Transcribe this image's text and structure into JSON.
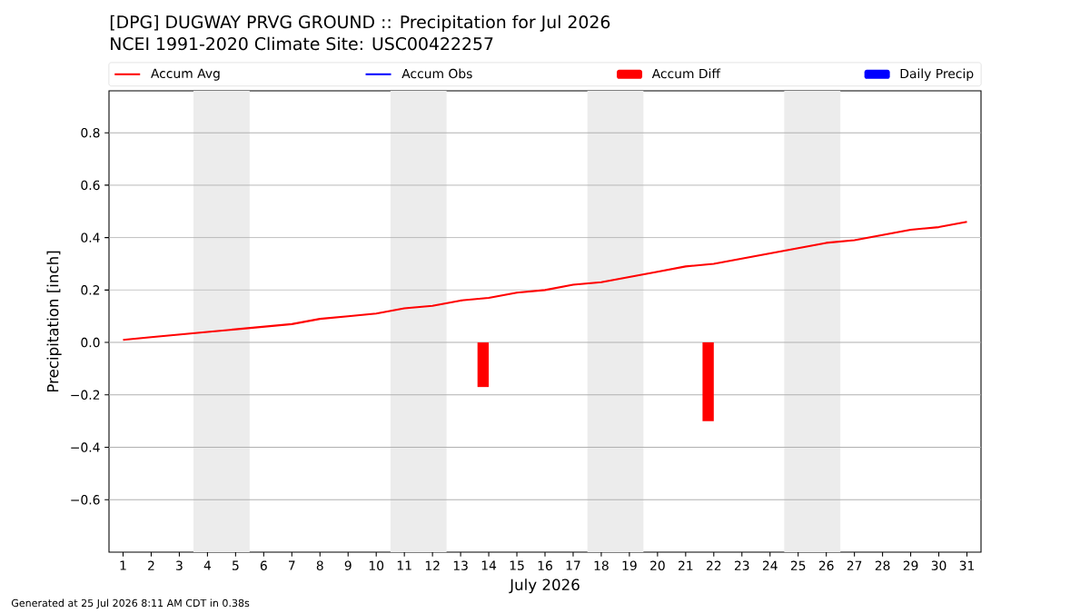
{
  "chart_data": {
    "type": "line",
    "title": "[DPG] DUGWAY PRVG GROUND :: Precipitation for Jul 2026",
    "subtitle": "NCEI 1991-2020 Climate Site: USC00422257",
    "xlabel": "July 2026",
    "ylabel": "Precipitation [inch]",
    "x": [
      1,
      2,
      3,
      4,
      5,
      6,
      7,
      8,
      9,
      10,
      11,
      12,
      13,
      14,
      15,
      16,
      17,
      18,
      19,
      20,
      21,
      22,
      23,
      24,
      25,
      26,
      27,
      28,
      29,
      30,
      31
    ],
    "series": [
      {
        "name": "Accum Avg",
        "color": "#ff0000",
        "values": [
          0.01,
          0.02,
          0.03,
          0.04,
          0.05,
          0.06,
          0.07,
          0.09,
          0.1,
          0.11,
          0.13,
          0.14,
          0.16,
          0.17,
          0.19,
          0.2,
          0.22,
          0.23,
          0.25,
          0.27,
          0.29,
          0.3,
          0.32,
          0.34,
          0.36,
          0.38,
          0.39,
          0.41,
          0.43,
          0.44,
          0.46
        ]
      },
      {
        "name": "Accum Obs",
        "color": "#0000ff",
        "values": [
          null,
          null,
          null,
          null,
          null,
          null,
          null,
          null,
          null,
          null,
          null,
          null,
          null,
          null,
          null,
          null,
          null,
          null,
          null,
          null,
          null,
          null,
          null,
          null,
          null,
          null,
          null,
          null,
          null,
          null,
          null
        ]
      },
      {
        "name": "Accum Diff",
        "type": "bar",
        "color": "#ff0000",
        "values": [
          null,
          null,
          null,
          null,
          null,
          null,
          null,
          null,
          null,
          null,
          null,
          null,
          null,
          -0.17,
          null,
          null,
          null,
          null,
          null,
          null,
          null,
          -0.3,
          null,
          null,
          null,
          null,
          null,
          null,
          null,
          null,
          null
        ]
      },
      {
        "name": "Daily Precip",
        "type": "bar",
        "color": "#0000ff",
        "values": [
          null,
          null,
          null,
          null,
          null,
          null,
          null,
          null,
          null,
          null,
          null,
          null,
          null,
          null,
          null,
          null,
          null,
          null,
          null,
          null,
          null,
          null,
          null,
          null,
          null,
          null,
          null,
          null,
          null,
          null,
          null
        ]
      }
    ],
    "xlim": [
      0.5,
      31.5
    ],
    "ylim": [
      -0.8,
      0.96
    ],
    "xticks": [
      1,
      2,
      3,
      4,
      5,
      6,
      7,
      8,
      9,
      10,
      11,
      12,
      13,
      14,
      15,
      16,
      17,
      18,
      19,
      20,
      21,
      22,
      23,
      24,
      25,
      26,
      27,
      28,
      29,
      30,
      31
    ],
    "yticks": [
      {
        "value": -0.6,
        "label": "−0.6"
      },
      {
        "value": -0.4,
        "label": "−0.4"
      },
      {
        "value": -0.2,
        "label": "−0.2"
      },
      {
        "value": 0,
        "label": "0.0"
      },
      0.2,
      0.4,
      0.6,
      0.8
    ],
    "bands": [
      {
        "axis": "x",
        "from": 3.5,
        "to": 5.5,
        "color": "#ececec"
      },
      {
        "axis": "x",
        "from": 10.5,
        "to": 12.5,
        "color": "#ececec"
      },
      {
        "axis": "x",
        "from": 17.5,
        "to": 19.5,
        "color": "#ececec"
      },
      {
        "axis": "x",
        "from": 24.5,
        "to": 26.5,
        "color": "#ececec"
      }
    ],
    "grid": "y",
    "legend": "top",
    "annotations": [
      "Generated at 25 Jul 2026 8:11 AM CDT in 0.38s"
    ]
  }
}
